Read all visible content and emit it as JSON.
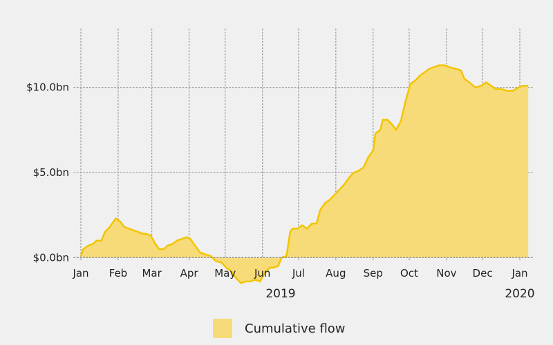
{
  "chart_data": {
    "type": "area",
    "y_ticks": [
      {
        "value": 10.0,
        "label": "$10.0bn"
      },
      {
        "value": 5.0,
        "label": "$5.0bn"
      },
      {
        "value": 0.0,
        "label": "$0.0bn"
      }
    ],
    "ylim": [
      -2.5,
      12.5
    ],
    "x_ticks": [
      "Jan",
      "Feb",
      "Mar",
      "Apr",
      "May",
      "Jun",
      "Jul",
      "Aug",
      "Sep",
      "Oct",
      "Nov",
      "Dec",
      "Jan"
    ],
    "year_labels": [
      "2019",
      "2020"
    ],
    "grid": true,
    "legend_position": "bottom",
    "series": [
      {
        "name": "Cumulative flow",
        "fill_color": "#f6db78",
        "line_color": "#f2c500",
        "points": [
          [
            "2019-01-01",
            0.1
          ],
          [
            "2019-01-03",
            0.5
          ],
          [
            "2019-01-07",
            0.7
          ],
          [
            "2019-01-11",
            0.8
          ],
          [
            "2019-01-14",
            1.0
          ],
          [
            "2019-01-18",
            1.0
          ],
          [
            "2019-01-21",
            1.5
          ],
          [
            "2019-01-25",
            1.8
          ],
          [
            "2019-01-28",
            2.1
          ],
          [
            "2019-01-30",
            2.3
          ],
          [
            "2019-02-03",
            2.1
          ],
          [
            "2019-02-06",
            1.8
          ],
          [
            "2019-02-10",
            1.7
          ],
          [
            "2019-02-14",
            1.6
          ],
          [
            "2019-02-18",
            1.5
          ],
          [
            "2019-02-21",
            1.4
          ],
          [
            "2019-02-24",
            1.4
          ],
          [
            "2019-02-28",
            1.3
          ],
          [
            "2019-03-04",
            0.8
          ],
          [
            "2019-03-07",
            0.5
          ],
          [
            "2019-03-11",
            0.5
          ],
          [
            "2019-03-14",
            0.7
          ],
          [
            "2019-03-18",
            0.8
          ],
          [
            "2019-03-22",
            1.0
          ],
          [
            "2019-03-26",
            1.1
          ],
          [
            "2019-03-30",
            1.2
          ],
          [
            "2019-04-02",
            1.1
          ],
          [
            "2019-04-06",
            0.7
          ],
          [
            "2019-04-10",
            0.3
          ],
          [
            "2019-04-14",
            0.2
          ],
          [
            "2019-04-19",
            0.1
          ],
          [
            "2019-04-23",
            -0.2
          ],
          [
            "2019-04-28",
            -0.3
          ],
          [
            "2019-05-02",
            -0.6
          ],
          [
            "2019-05-06",
            -0.8
          ],
          [
            "2019-05-10",
            -1.2
          ],
          [
            "2019-05-14",
            -1.5
          ],
          [
            "2019-05-18",
            -1.4
          ],
          [
            "2019-05-22",
            -1.4
          ],
          [
            "2019-05-26",
            -1.3
          ],
          [
            "2019-05-30",
            -1.4
          ],
          [
            "2019-06-03",
            -0.9
          ],
          [
            "2019-06-07",
            -0.6
          ],
          [
            "2019-06-10",
            -0.6
          ],
          [
            "2019-06-14",
            -0.5
          ],
          [
            "2019-06-17",
            0.0
          ],
          [
            "2019-06-21",
            0.1
          ],
          [
            "2019-06-24",
            1.5
          ],
          [
            "2019-06-26",
            1.7
          ],
          [
            "2019-06-30",
            1.7
          ],
          [
            "2019-07-04",
            1.9
          ],
          [
            "2019-07-08",
            1.7
          ],
          [
            "2019-07-12",
            2.0
          ],
          [
            "2019-07-16",
            2.0
          ],
          [
            "2019-07-19",
            2.8
          ],
          [
            "2019-07-23",
            3.2
          ],
          [
            "2019-07-27",
            3.4
          ],
          [
            "2019-07-31",
            3.7
          ],
          [
            "2019-08-04",
            4.0
          ],
          [
            "2019-08-08",
            4.3
          ],
          [
            "2019-08-12",
            4.7
          ],
          [
            "2019-08-16",
            5.0
          ],
          [
            "2019-08-20",
            5.1
          ],
          [
            "2019-08-24",
            5.3
          ],
          [
            "2019-08-28",
            5.9
          ],
          [
            "2019-09-01",
            6.3
          ],
          [
            "2019-09-03",
            7.3
          ],
          [
            "2019-09-07",
            7.5
          ],
          [
            "2019-09-09",
            8.1
          ],
          [
            "2019-09-13",
            8.1
          ],
          [
            "2019-09-17",
            7.8
          ],
          [
            "2019-09-20",
            7.5
          ],
          [
            "2019-09-24",
            8.0
          ],
          [
            "2019-09-28",
            9.2
          ],
          [
            "2019-10-02",
            10.2
          ],
          [
            "2019-10-06",
            10.4
          ],
          [
            "2019-10-10",
            10.7
          ],
          [
            "2019-10-14",
            10.9
          ],
          [
            "2019-10-18",
            11.1
          ],
          [
            "2019-10-22",
            11.2
          ],
          [
            "2019-10-26",
            11.3
          ],
          [
            "2019-10-30",
            11.3
          ],
          [
            "2019-11-03",
            11.2
          ],
          [
            "2019-11-08",
            11.1
          ],
          [
            "2019-11-13",
            11.0
          ],
          [
            "2019-11-16",
            10.5
          ],
          [
            "2019-11-20",
            10.3
          ],
          [
            "2019-11-25",
            10.0
          ],
          [
            "2019-11-30",
            10.1
          ],
          [
            "2019-12-04",
            10.3
          ],
          [
            "2019-12-08",
            10.1
          ],
          [
            "2019-12-12",
            9.9
          ],
          [
            "2019-12-17",
            9.9
          ],
          [
            "2019-12-21",
            9.8
          ],
          [
            "2019-12-26",
            9.8
          ],
          [
            "2019-12-31",
            10.0
          ],
          [
            "2020-01-04",
            10.1
          ],
          [
            "2020-01-08",
            10.1
          ]
        ]
      }
    ]
  }
}
